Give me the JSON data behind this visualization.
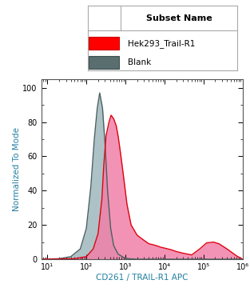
{
  "xlabel": "CD261 / TRAIL-R1 APC",
  "ylabel": "Normalized To Mode",
  "xlim_log": [
    7,
    1000000
  ],
  "ylim": [
    0,
    105
  ],
  "yticks": [
    0,
    20,
    40,
    60,
    80,
    100
  ],
  "xtick_values": [
    10,
    100,
    1000,
    10000,
    100000,
    1000000
  ],
  "xtick_labels": [
    "10¹",
    "10²",
    "10³",
    "10⁴",
    "10⁵",
    "10⁶"
  ],
  "legend_title": "Subset Name",
  "legend_entries": [
    "Hek293_Trail-R1",
    "Blank"
  ],
  "blank_x": [
    7,
    20,
    40,
    70,
    100,
    130,
    160,
    190,
    220,
    260,
    300,
    350,
    420,
    500,
    650,
    900,
    1200,
    2000,
    4000,
    10000,
    1000000
  ],
  "blank_y": [
    0,
    0.3,
    1.5,
    6,
    18,
    42,
    70,
    88,
    97,
    88,
    68,
    40,
    18,
    8,
    3,
    1,
    0.3,
    0,
    0,
    0,
    0
  ],
  "hek_x": [
    7,
    50,
    100,
    150,
    200,
    250,
    280,
    320,
    380,
    430,
    500,
    580,
    650,
    750,
    900,
    1100,
    1400,
    2000,
    3000,
    4000,
    5000,
    6000,
    7000,
    8000,
    10000,
    15000,
    20000,
    30000,
    50000,
    80000,
    120000,
    180000,
    250000,
    400000,
    700000,
    1000000
  ],
  "hek_y": [
    0,
    0.3,
    1.5,
    6,
    15,
    35,
    55,
    72,
    80,
    84,
    82,
    78,
    72,
    62,
    48,
    32,
    20,
    14,
    11,
    9,
    8.5,
    8,
    7.5,
    7,
    6.5,
    5.5,
    4.5,
    3.5,
    2.5,
    6,
    9.5,
    10,
    9,
    6,
    2,
    0
  ],
  "blank_fill_color": "#9fb8bc",
  "blank_fill_alpha": 0.85,
  "blank_edge_color": "#4a6060",
  "blank_edge_width": 1.0,
  "hek_fill_color": "#f080a8",
  "hek_fill_alpha": 0.85,
  "hek_edge_color": "#e00010",
  "hek_edge_width": 1.0,
  "legend_sq_hek_fill": "#ff0000",
  "legend_sq_hek_edge": "#cc0000",
  "legend_sq_blank_fill": "#5a6e70",
  "legend_sq_blank_edge": "#3a4e50",
  "background_color": "#ffffff",
  "plot_bg_color": "#ffffff",
  "legend_border_color": "#aaaaaa",
  "axis_color": "#555555",
  "tick_color": "#000000",
  "label_color": "#2080a0",
  "fontsize_label": 7.5,
  "fontsize_tick": 7,
  "fontsize_legend_title": 8,
  "fontsize_legend_entry": 7.5
}
